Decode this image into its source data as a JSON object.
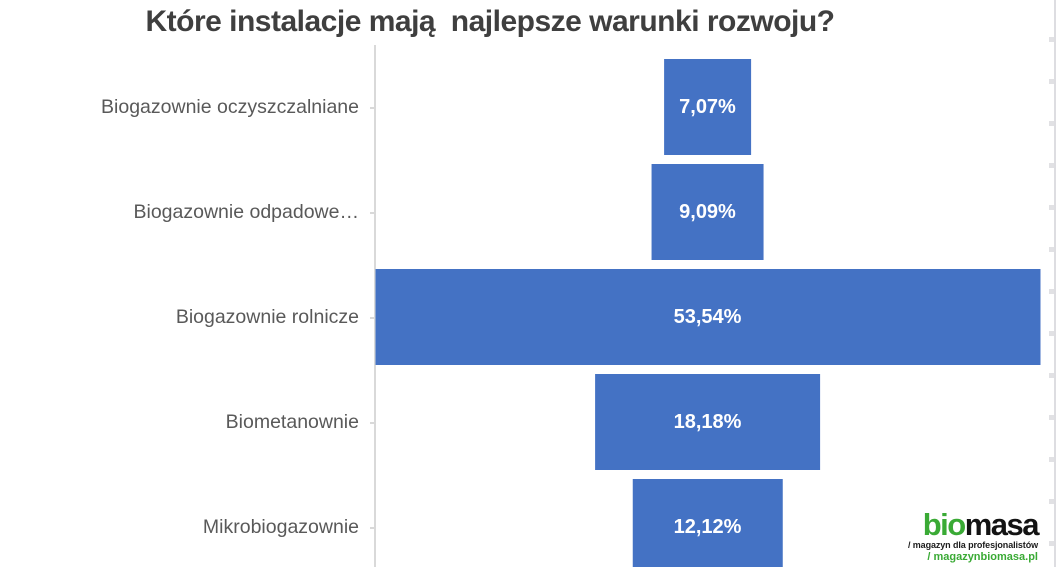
{
  "chart_data": {
    "type": "bar",
    "orientation": "horizontal",
    "style": "centered-funnel",
    "title": "Które instalacje mają  najlepsze warunki rozwoju?",
    "categories": [
      "Biogazownie oczyszczalniane",
      "Biogazownie odpadowe…",
      "Biogazownie rolnicze",
      "Biometanownie",
      "Mikrobiogazownie"
    ],
    "values": [
      7.07,
      9.09,
      53.54,
      18.18,
      12.12
    ],
    "value_labels": [
      "7,07%",
      "9,09%",
      "53,54%",
      "18,18%",
      "12,12%"
    ],
    "xlabel": "",
    "ylabel": "",
    "legend": false,
    "gridlines": false,
    "colors": {
      "bar": "#4472C4",
      "value_label": "#FFFFFF",
      "category_label": "#595959",
      "title": "#3F3F3F",
      "axis_line": "#D9D9D9",
      "background": "#FFFFFF"
    }
  },
  "logo": {
    "brand_prefix": "bio",
    "brand_suffix": "masa",
    "tagline": "/ magazyn dla profesjonalistów",
    "url": "/ magazynbiomasa.pl",
    "green": "#3AAA35"
  }
}
